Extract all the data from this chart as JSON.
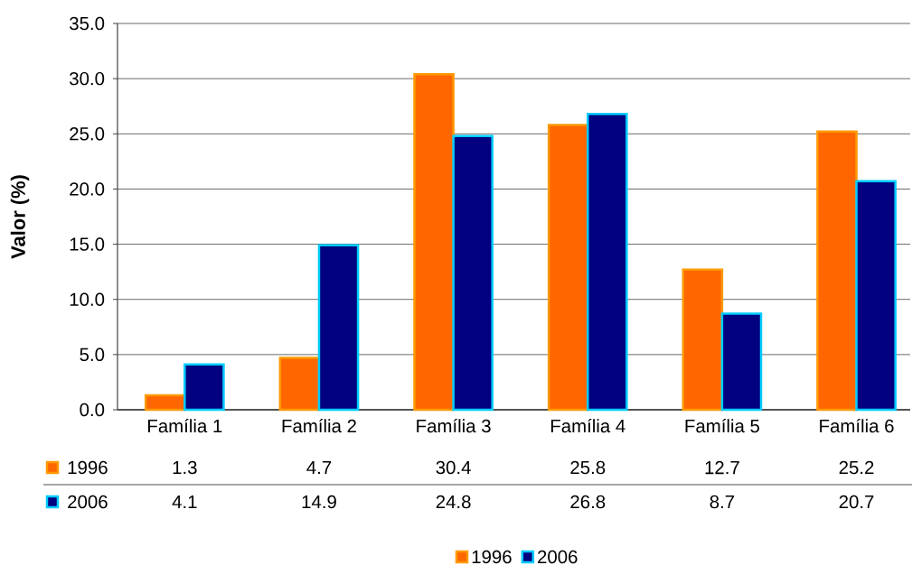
{
  "chart_data": {
    "type": "bar",
    "ylabel": "Valor (%)",
    "categories": [
      "Família 1",
      "Família 2",
      "Família 3",
      "Família 4",
      "Família 5",
      "Família 6"
    ],
    "series": [
      {
        "name": "1996",
        "color": "#ff6600",
        "values": [
          1.3,
          4.7,
          30.4,
          25.8,
          12.7,
          25.2
        ]
      },
      {
        "name": "2006",
        "color": "#000080",
        "values": [
          4.1,
          14.9,
          24.8,
          26.8,
          8.7,
          20.7
        ]
      }
    ],
    "ylim": [
      0,
      35
    ],
    "yticks": [
      {
        "value": 0,
        "label": "0.0"
      },
      {
        "value": 5,
        "label": "5.0"
      },
      {
        "value": 10,
        "label": "10.0"
      },
      {
        "value": 15,
        "label": "15.0"
      },
      {
        "value": 20,
        "label": "20.0"
      },
      {
        "value": 25,
        "label": "25.0"
      },
      {
        "value": 30,
        "label": "30.0"
      },
      {
        "value": 35,
        "label": "35.0"
      }
    ],
    "grid": "y",
    "legend": "bottom",
    "data_labels": true
  }
}
